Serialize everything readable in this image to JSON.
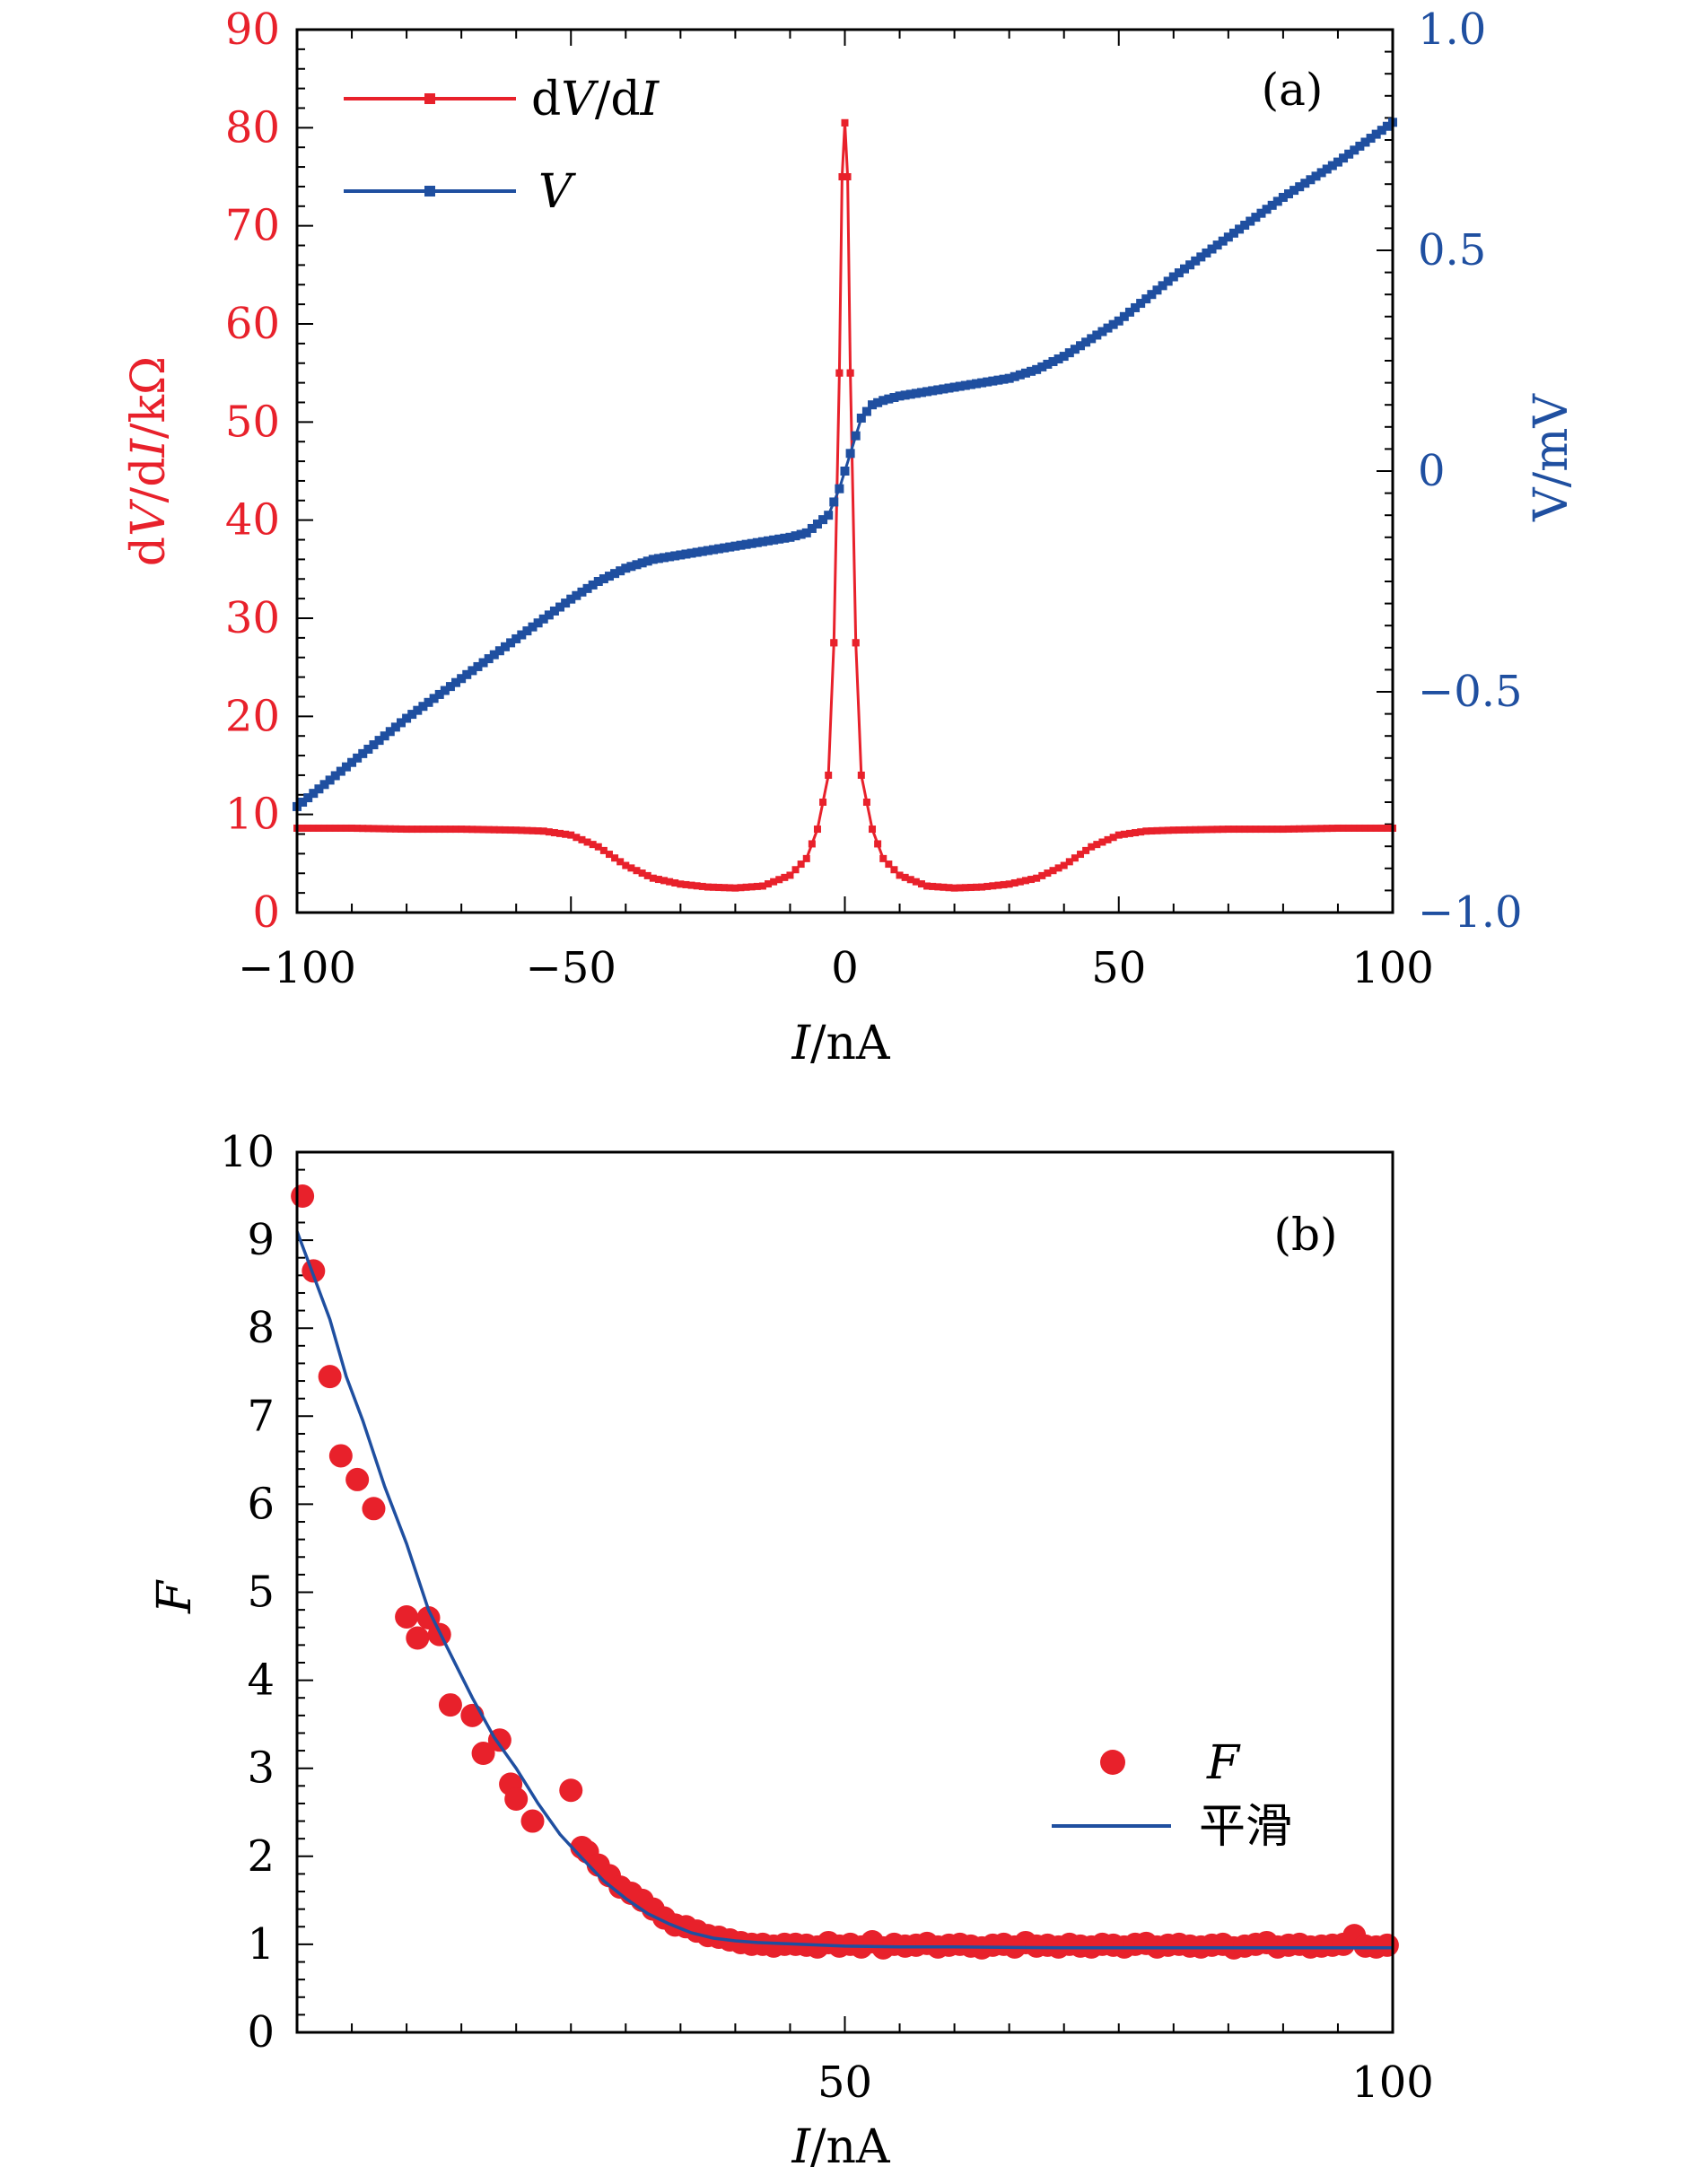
{
  "colors": {
    "red": "#e8212b",
    "blue": "#1f4fa0",
    "axis": "#000000"
  },
  "chart_data": [
    {
      "panel": "(a)",
      "type": "line",
      "xlabel": {
        "italic": "I",
        "rest": "/nA"
      },
      "xlim": [
        -100,
        100
      ],
      "x_ticks": [
        -100,
        -50,
        0,
        50,
        100
      ],
      "x_tick_labels": [
        "−100",
        "−50",
        "0",
        "50",
        "100"
      ],
      "left_axis": {
        "label": "dV/dI/kΩ",
        "label_parts": {
          "a": "d",
          "b": "V",
          "c": "/d",
          "d": "I",
          "e": "/kΩ"
        },
        "ylim": [
          0,
          90
        ],
        "ticks": [
          0,
          10,
          20,
          30,
          40,
          50,
          60,
          70,
          80,
          90
        ],
        "tick_labels": [
          "0",
          "10",
          "20",
          "30",
          "40",
          "50",
          "60",
          "70",
          "80",
          "90"
        ],
        "color": "#e8212b"
      },
      "right_axis": {
        "label": "V/mV",
        "ylim": [
          -1.0,
          1.0
        ],
        "ticks": [
          -1.0,
          -0.5,
          0,
          0.5,
          1.0
        ],
        "tick_labels": [
          "−1.0",
          "−0.5",
          "0",
          "0.5",
          "1.0"
        ],
        "color": "#1f4fa0"
      },
      "legend_position": "top-left",
      "series": [
        {
          "name": "dV/dI",
          "name_parts": {
            "a": "d",
            "b": "V",
            "c": "/d",
            "d": "I"
          },
          "axis": "left",
          "color": "#e8212b",
          "x": [
            -100,
            -90,
            -80,
            -70,
            -60,
            -55,
            -50,
            -45,
            -40,
            -35,
            -30,
            -25,
            -20,
            -15,
            -10,
            -7,
            -5,
            -3,
            -2,
            -1,
            -0.5,
            0,
            0.5,
            1,
            2,
            3,
            5,
            7,
            10,
            15,
            20,
            25,
            30,
            35,
            40,
            45,
            50,
            55,
            60,
            70,
            80,
            90,
            100
          ],
          "values": [
            8.6,
            8.6,
            8.5,
            8.5,
            8.4,
            8.3,
            7.9,
            6.7,
            4.8,
            3.5,
            2.9,
            2.6,
            2.5,
            2.7,
            3.8,
            5.5,
            8.5,
            14,
            27.5,
            55,
            75,
            80.5,
            75,
            55,
            27.5,
            14,
            8.5,
            5.5,
            3.8,
            2.7,
            2.5,
            2.6,
            2.9,
            3.5,
            4.8,
            6.7,
            7.9,
            8.3,
            8.4,
            8.5,
            8.5,
            8.6,
            8.6
          ]
        },
        {
          "name": "V",
          "axis": "right",
          "color": "#1f4fa0",
          "x": [
            -100,
            -90,
            -80,
            -70,
            -60,
            -50,
            -45,
            -40,
            -35,
            -30,
            -25,
            -20,
            -15,
            -10,
            -7,
            -5,
            -3,
            -2,
            -1,
            0,
            1,
            2,
            3,
            5,
            7,
            10,
            15,
            20,
            25,
            30,
            35,
            40,
            45,
            50,
            60,
            70,
            80,
            90,
            100
          ],
          "values": [
            -0.76,
            -0.66,
            -0.56,
            -0.47,
            -0.38,
            -0.29,
            -0.25,
            -0.22,
            -0.2,
            -0.19,
            -0.18,
            -0.17,
            -0.16,
            -0.15,
            -0.14,
            -0.12,
            -0.1,
            -0.07,
            -0.04,
            0.0,
            0.04,
            0.08,
            0.12,
            0.15,
            0.16,
            0.17,
            0.18,
            0.19,
            0.2,
            0.21,
            0.23,
            0.26,
            0.3,
            0.34,
            0.44,
            0.53,
            0.62,
            0.7,
            0.79
          ]
        }
      ]
    },
    {
      "panel": "(b)",
      "type": "scatter",
      "xlabel": {
        "italic": "I",
        "rest": "/nA"
      },
      "xlim": [
        0,
        100
      ],
      "x_ticks": [
        50,
        100
      ],
      "x_tick_labels": [
        "50",
        "100"
      ],
      "ylabel": "F",
      "ylim": [
        0,
        10
      ],
      "y_ticks": [
        0,
        1,
        2,
        3,
        4,
        5,
        6,
        7,
        8,
        9,
        10
      ],
      "y_tick_labels": [
        "0",
        "1",
        "2",
        "3",
        "4",
        "5",
        "6",
        "7",
        "8",
        "9",
        "10"
      ],
      "legend_position": "center-right",
      "series": [
        {
          "name": "F",
          "kind": "scatter",
          "color": "#e8212b",
          "x": [
            0.5,
            1.5,
            3,
            4,
            5.5,
            7,
            10,
            11,
            12,
            13,
            14,
            16,
            17,
            18.5,
            19.5,
            20,
            21.5,
            25,
            26,
            26.5,
            27.5,
            28.5,
            29.5,
            30.5,
            31.5,
            32.5,
            33.5,
            34.5,
            35.5,
            36.5,
            37.5,
            38.5,
            39.5,
            40.5,
            41.5,
            42.5,
            43.5,
            44.5,
            45.5,
            46.5,
            47.5,
            48.5,
            49.5,
            50.5,
            51.5,
            52.5,
            53.5,
            54.5,
            55.5,
            56.5,
            57.5,
            58.5,
            59.5,
            60.5,
            61.5,
            62.5,
            63.5,
            64.5,
            65.5,
            66.5,
            67.5,
            68.5,
            69.5,
            70.5,
            71.5,
            72.5,
            73.5,
            74.5,
            75.5,
            76.5,
            77.5,
            78.5,
            79.5,
            80.5,
            81.5,
            82.5,
            83.5,
            84.5,
            85.5,
            86.5,
            87.5,
            88.5,
            89.5,
            90.5,
            91.5,
            92.5,
            93.5,
            94.5,
            95.5,
            96.5,
            97.5,
            98.5,
            99.5
          ],
          "values": [
            9.5,
            8.65,
            7.45,
            6.55,
            6.28,
            5.95,
            4.72,
            4.48,
            4.71,
            4.52,
            3.72,
            3.6,
            3.17,
            3.32,
            2.82,
            2.65,
            2.4,
            2.75,
            2.1,
            2.05,
            1.9,
            1.78,
            1.65,
            1.58,
            1.5,
            1.4,
            1.3,
            1.22,
            1.2,
            1.15,
            1.1,
            1.08,
            1.05,
            1.02,
            1.0,
            1.0,
            0.98,
            1.0,
            1.0,
            0.99,
            0.97,
            1.02,
            0.98,
            1.0,
            0.97,
            1.03,
            0.96,
            1.0,
            0.98,
            0.99,
            1.01,
            0.97,
            0.99,
            1.0,
            0.98,
            0.96,
            0.99,
            1.0,
            0.97,
            1.02,
            0.98,
            0.99,
            0.97,
            1.0,
            0.98,
            0.97,
            1.0,
            0.99,
            0.97,
            1.0,
            1.01,
            0.97,
            0.99,
            1.0,
            0.98,
            0.97,
            0.99,
            1.0,
            0.96,
            0.98,
            1.0,
            1.02,
            0.97,
            0.99,
            1.0,
            0.97,
            0.98,
            0.99,
            1.0,
            1.1,
            0.98,
            0.97,
            0.99
          ]
        },
        {
          "name": "平滑",
          "kind": "line",
          "color": "#1f4fa0",
          "x": [
            0,
            1.5,
            3,
            4.5,
            6,
            8,
            10,
            12,
            14,
            16,
            18,
            20,
            22,
            24,
            26,
            28,
            30,
            32,
            34,
            36,
            38,
            40,
            42,
            44,
            46,
            50,
            55,
            60,
            70,
            80,
            90,
            100
          ],
          "values": [
            9.1,
            8.6,
            8.1,
            7.45,
            6.95,
            6.2,
            5.55,
            4.8,
            4.3,
            3.8,
            3.35,
            3.0,
            2.6,
            2.25,
            1.98,
            1.72,
            1.52,
            1.35,
            1.23,
            1.13,
            1.07,
            1.04,
            1.02,
            1.01,
            1.0,
            0.98,
            0.97,
            0.97,
            0.96,
            0.96,
            0.96,
            0.96
          ]
        }
      ]
    }
  ]
}
